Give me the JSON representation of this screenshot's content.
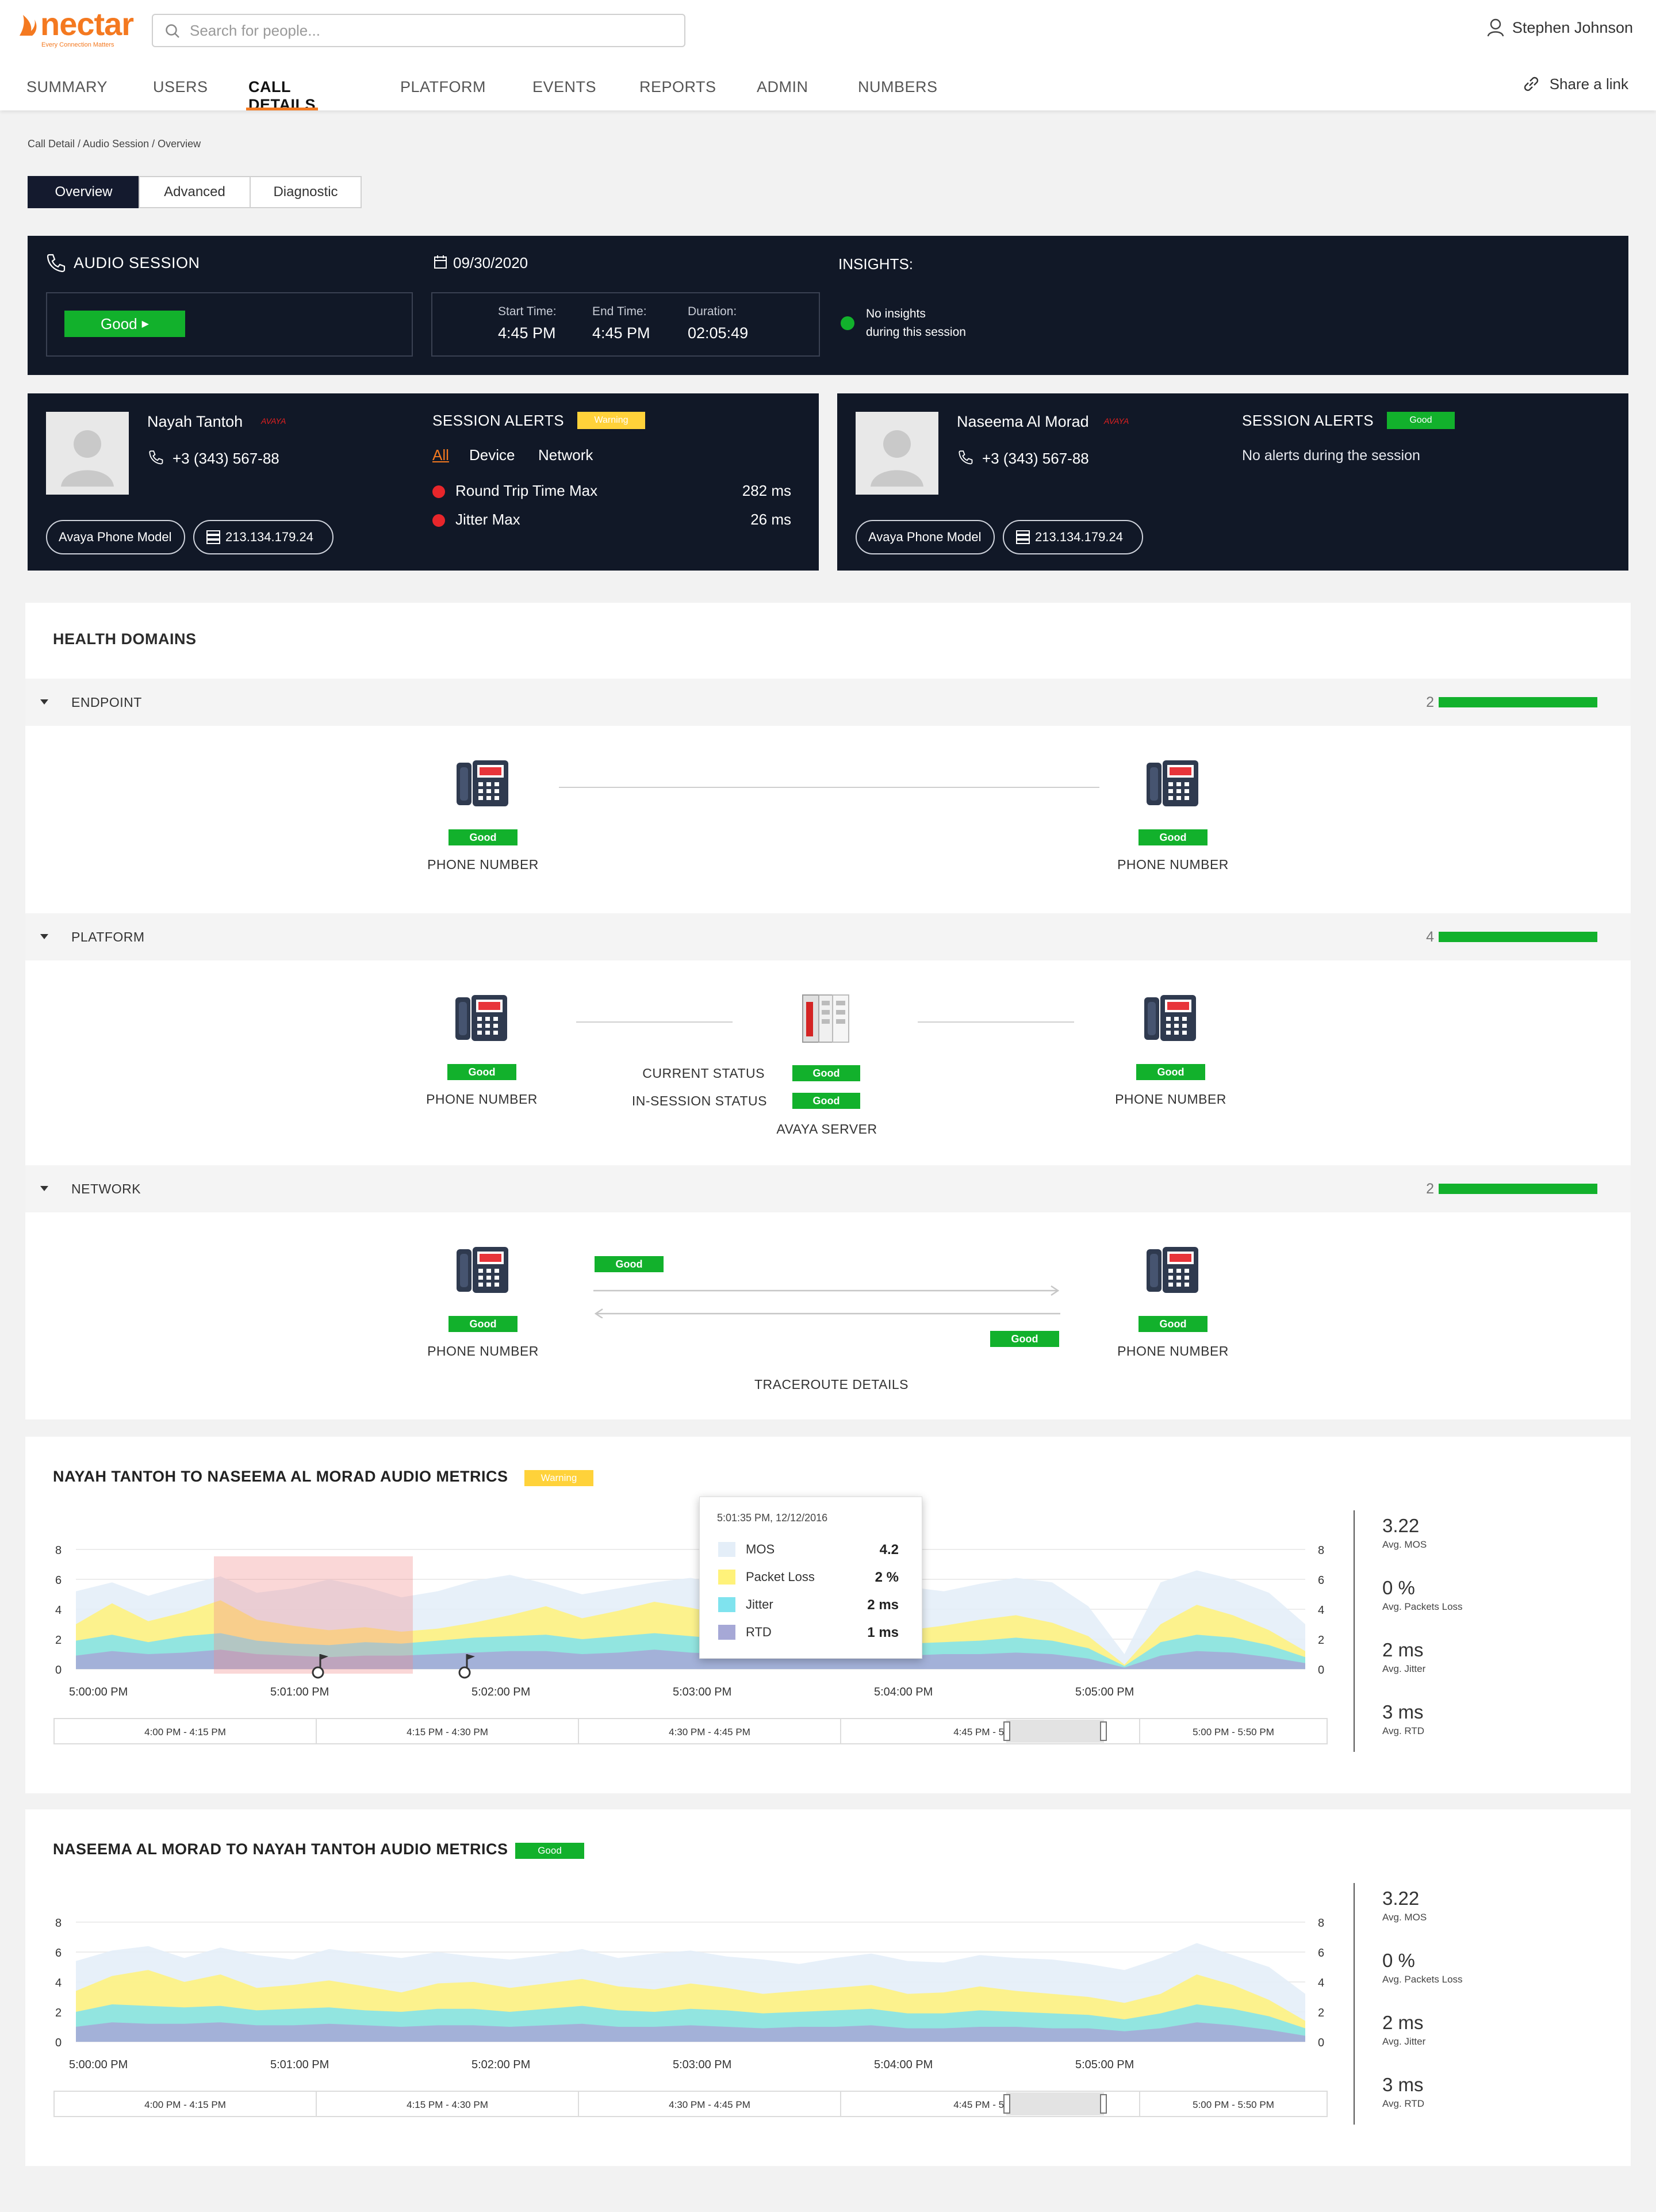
{
  "app": {
    "logo_text": "nectar",
    "logo_tagline": "Every Connection Matters"
  },
  "search": {
    "placeholder": "Search for people..."
  },
  "user": {
    "name": "Stephen Johnson"
  },
  "nav": {
    "tabs": [
      "SUMMARY",
      "USERS",
      "CALL DETAILS",
      "PLATFORM",
      "EVENTS",
      "REPORTS",
      "ADMIN",
      "NUMBERS"
    ],
    "active": "CALL DETAILS"
  },
  "share": {
    "label": "Share a link"
  },
  "breadcrumb": "Call Detail / Audio Session / Overview",
  "subtabs": [
    "Overview",
    "Advanced",
    "Diagnostic"
  ],
  "session": {
    "title": "AUDIO SESSION",
    "status": "Good",
    "date": "09/30/2020",
    "start_label": "Start Time:",
    "start": "4:45 PM",
    "end_label": "End Time:",
    "end": "4:45 PM",
    "duration_label": "Duration:",
    "duration": "02:05:49",
    "insights_label": "INSIGHTS:",
    "insights_text_1": "No insights",
    "insights_text_2": "during this session"
  },
  "participants": [
    {
      "name": "Nayah Tantoh",
      "vendor": "AVAYA",
      "phone": "+3 (343) 567-88",
      "model": "Avaya Phone Model",
      "ip": "213.134.179.24",
      "alerts_title": "SESSION ALERTS",
      "alerts_badge": "Warning",
      "filters": [
        "All",
        "Device",
        "Network"
      ],
      "alerts": [
        {
          "label": "Round Trip Time Max",
          "value": "282 ms"
        },
        {
          "label": "Jitter Max",
          "value": "26 ms"
        }
      ]
    },
    {
      "name": "Naseema Al Morad",
      "vendor": "AVAYA",
      "phone": "+3 (343) 567-88",
      "model": "Avaya Phone Model",
      "ip": "213.134.179.24",
      "alerts_title": "SESSION ALERTS",
      "alerts_badge": "Good",
      "no_alerts": "No alerts during the session"
    }
  ],
  "health": {
    "title": "HEALTH DOMAINS",
    "sections": [
      {
        "label": "ENDPOINT",
        "count": "2"
      },
      {
        "label": "PLATFORM",
        "count": "4"
      },
      {
        "label": "NETWORK",
        "count": "2"
      }
    ],
    "good": "Good",
    "phone_number": "PHONE NUMBER",
    "current_status": "CURRENT STATUS",
    "in_session_status": "IN-SESSION STATUS",
    "server": "AVAYA SERVER",
    "traceroute": "TRACEROUTE DETAILS"
  },
  "metrics": [
    {
      "title": "NAYAH TANTOH TO NASEEMA AL MORAD AUDIO METRICS",
      "badge": "Warning",
      "stats": [
        {
          "value": "3.22",
          "label": "Avg. MOS"
        },
        {
          "value": "0 %",
          "label": "Avg. Packets Loss"
        },
        {
          "value": "2 ms",
          "label": "Avg. Jitter"
        },
        {
          "value": "3 ms",
          "label": "Avg. RTD"
        }
      ],
      "tooltip": {
        "time": "5:01:35 PM, 12/12/2016",
        "rows": [
          {
            "label": "MOS",
            "value": "4.2",
            "color": "#e4eef8"
          },
          {
            "label": "Packet Loss",
            "value": "2 %",
            "color": "#fff27a"
          },
          {
            "label": "Jitter",
            "value": "2 ms",
            "color": "#7fe3ee"
          },
          {
            "label": "RTD",
            "value": "1 ms",
            "color": "#a6a8d6"
          }
        ]
      }
    },
    {
      "title": "NASEEMA AL MORAD TO NAYAH TANTOH AUDIO METRICS",
      "badge": "Good",
      "stats": [
        {
          "value": "3.22",
          "label": "Avg. MOS"
        },
        {
          "value": "0 %",
          "label": "Avg. Packets Loss"
        },
        {
          "value": "2 ms",
          "label": "Avg. Jitter"
        },
        {
          "value": "3 ms",
          "label": "Avg. RTD"
        }
      ]
    }
  ],
  "chart_data": [
    {
      "type": "area",
      "y_ticks": [
        "0",
        "2",
        "4",
        "6",
        "8"
      ],
      "ylim": [
        0,
        8
      ],
      "x_ticks": [
        "5:00:00 PM",
        "5:01:00 PM",
        "5:02:00 PM",
        "5:03:00 PM",
        "5:04:00 PM",
        "5:05:00 PM"
      ],
      "ranges": [
        "4:00 PM - 4:15 PM",
        "4:15 PM - 4:30 PM",
        "4:30 PM - 4:45 PM",
        "4:45 PM - 5:00 P",
        "5:00 PM - 5:50 PM"
      ],
      "series": [
        {
          "name": "MOS",
          "color": "#e4eef8",
          "values": [
            5.2,
            5.8,
            4.9,
            5.6,
            6.2,
            5.1,
            5.4,
            6.0,
            5.5,
            4.8,
            5.2,
            5.9,
            6.3,
            5.7,
            5.0,
            5.4,
            5.8,
            6.1,
            5.6,
            5.3,
            5.9,
            6.4,
            6.0,
            5.5,
            5.2,
            5.7,
            6.1,
            5.8,
            4.2,
            1.0,
            5.8,
            6.6,
            6.0,
            5.1,
            3.0
          ]
        },
        {
          "name": "Packet Loss",
          "color": "#fff27a",
          "values": [
            3.0,
            4.4,
            3.2,
            3.8,
            4.6,
            3.3,
            2.9,
            2.6,
            2.8,
            2.5,
            2.7,
            3.1,
            3.6,
            4.2,
            3.4,
            3.9,
            4.5,
            4.1,
            3.6,
            3.2,
            3.4,
            3.0,
            2.8,
            2.6,
            2.9,
            3.3,
            3.6,
            3.1,
            2.2,
            0.3,
            3.0,
            4.3,
            3.6,
            2.6,
            1.2
          ]
        },
        {
          "name": "Jitter",
          "color": "#7fe3ee",
          "values": [
            1.9,
            2.3,
            1.8,
            2.2,
            2.4,
            1.9,
            1.7,
            1.6,
            1.8,
            1.7,
            1.9,
            2.1,
            2.2,
            2.3,
            2.0,
            2.2,
            2.4,
            2.2,
            2.0,
            1.8,
            1.9,
            1.8,
            1.7,
            1.7,
            1.8,
            1.9,
            2.1,
            1.9,
            1.4,
            0.2,
            1.8,
            2.3,
            2.1,
            1.6,
            0.8
          ]
        },
        {
          "name": "RTD",
          "color": "#a6a8d6",
          "values": [
            0.9,
            1.2,
            1.0,
            1.1,
            1.3,
            1.0,
            0.9,
            0.8,
            0.9,
            0.9,
            1.0,
            1.1,
            1.2,
            1.2,
            1.0,
            1.1,
            1.3,
            1.1,
            1.0,
            0.9,
            1.0,
            0.9,
            0.9,
            0.9,
            1.0,
            1.0,
            1.1,
            1.0,
            0.7,
            0.1,
            0.9,
            1.2,
            1.1,
            0.8,
            0.4
          ]
        }
      ]
    },
    {
      "type": "area",
      "y_ticks": [
        "0",
        "2",
        "4",
        "6",
        "8"
      ],
      "ylim": [
        0,
        8
      ],
      "x_ticks": [
        "5:00:00 PM",
        "5:01:00 PM",
        "5:02:00 PM",
        "5:03:00 PM",
        "5:04:00 PM",
        "5:05:00 PM"
      ],
      "ranges": [
        "4:00 PM - 4:15 PM",
        "4:15 PM - 4:30 PM",
        "4:30 PM - 4:45 PM",
        "4:45 PM - 5:00 P",
        "5:00 PM - 5:50 PM"
      ],
      "series": [
        {
          "name": "MOS",
          "color": "#e4eef8",
          "values": [
            5.4,
            6.1,
            6.4,
            5.6,
            6.3,
            5.8,
            5.5,
            6.2,
            5.9,
            5.6,
            6.0,
            5.7,
            5.5,
            5.8,
            6.2,
            5.6,
            5.9,
            6.1,
            5.7,
            5.5,
            5.2,
            5.6,
            5.9,
            5.4,
            5.3,
            5.8,
            5.6,
            5.5,
            5.2,
            4.8,
            5.6,
            6.6,
            5.8,
            5.0,
            3.2
          ]
        },
        {
          "name": "Packet Loss",
          "color": "#fff27a",
          "values": [
            3.4,
            4.4,
            4.8,
            4.0,
            4.5,
            3.6,
            3.8,
            4.1,
            3.7,
            3.3,
            3.9,
            4.0,
            3.6,
            3.9,
            4.2,
            3.7,
            3.5,
            3.9,
            3.6,
            3.2,
            3.4,
            3.6,
            3.8,
            3.2,
            3.3,
            3.7,
            3.4,
            3.2,
            3.0,
            2.6,
            3.2,
            4.5,
            3.8,
            2.8,
            1.4
          ]
        },
        {
          "name": "Jitter",
          "color": "#7fe3ee",
          "values": [
            2.0,
            2.5,
            2.4,
            2.3,
            2.4,
            2.1,
            2.2,
            2.3,
            2.1,
            2.0,
            2.2,
            2.2,
            2.0,
            2.2,
            2.4,
            2.1,
            2.0,
            2.2,
            2.1,
            1.9,
            2.0,
            2.1,
            2.2,
            1.9,
            1.9,
            2.1,
            2.0,
            1.9,
            1.8,
            1.5,
            1.9,
            2.5,
            2.2,
            1.7,
            0.9
          ]
        },
        {
          "name": "RTD",
          "color": "#a6a8d6",
          "values": [
            1.0,
            1.3,
            1.2,
            1.2,
            1.3,
            1.1,
            1.1,
            1.2,
            1.1,
            1.0,
            1.1,
            1.1,
            1.0,
            1.1,
            1.2,
            1.0,
            1.0,
            1.1,
            1.0,
            0.9,
            1.0,
            1.0,
            1.1,
            0.9,
            0.9,
            1.0,
            1.0,
            0.9,
            0.9,
            0.7,
            0.9,
            1.3,
            1.1,
            0.8,
            0.4
          ]
        }
      ]
    }
  ]
}
